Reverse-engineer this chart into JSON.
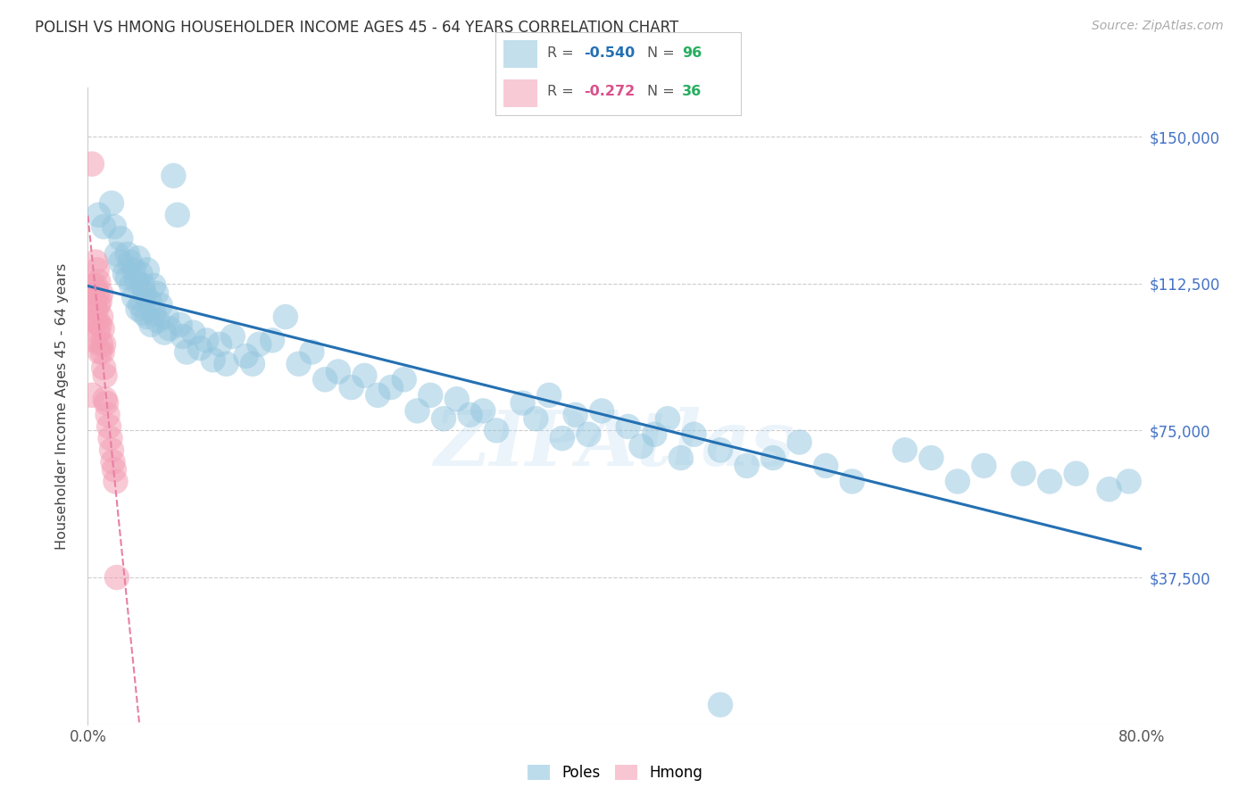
{
  "title": "POLISH VS HMONG HOUSEHOLDER INCOME AGES 45 - 64 YEARS CORRELATION CHART",
  "source": "Source: ZipAtlas.com",
  "ylabel": "Householder Income Ages 45 - 64 years",
  "xlim": [
    0.0,
    0.8
  ],
  "ylim": [
    0,
    162500
  ],
  "ytick_vals": [
    0,
    37500,
    75000,
    112500,
    150000
  ],
  "ytick_labels": [
    "",
    "$37,500",
    "$75,000",
    "$112,500",
    "$150,000"
  ],
  "xtick_positions": [
    0.0,
    0.1,
    0.2,
    0.3,
    0.4,
    0.5,
    0.6,
    0.7,
    0.8
  ],
  "poles_color": "#92c5de",
  "hmong_color": "#f4a0b5",
  "poles_line_color": "#2470b3",
  "hmong_line_color": "#e87fa5",
  "poles_R": -0.54,
  "poles_N": 96,
  "hmong_R": -0.272,
  "hmong_N": 36,
  "poles_x": [
    0.008,
    0.012,
    0.018,
    0.02,
    0.022,
    0.025,
    0.025,
    0.028,
    0.03,
    0.03,
    0.032,
    0.033,
    0.035,
    0.035,
    0.037,
    0.038,
    0.038,
    0.04,
    0.04,
    0.042,
    0.042,
    0.043,
    0.045,
    0.045,
    0.047,
    0.048,
    0.05,
    0.05,
    0.052,
    0.053,
    0.055,
    0.058,
    0.06,
    0.062,
    0.065,
    0.068,
    0.07,
    0.072,
    0.075,
    0.08,
    0.085,
    0.09,
    0.095,
    0.1,
    0.105,
    0.11,
    0.12,
    0.125,
    0.13,
    0.14,
    0.15,
    0.16,
    0.17,
    0.18,
    0.19,
    0.2,
    0.21,
    0.22,
    0.23,
    0.24,
    0.25,
    0.26,
    0.27,
    0.28,
    0.29,
    0.3,
    0.31,
    0.33,
    0.34,
    0.35,
    0.36,
    0.37,
    0.38,
    0.39,
    0.41,
    0.42,
    0.43,
    0.44,
    0.45,
    0.46,
    0.48,
    0.5,
    0.52,
    0.54,
    0.56,
    0.58,
    0.62,
    0.64,
    0.66,
    0.68,
    0.71,
    0.73,
    0.75,
    0.775,
    0.79,
    0.48
  ],
  "poles_y": [
    130000,
    127000,
    133000,
    127000,
    120000,
    118000,
    124000,
    115000,
    120000,
    114000,
    118000,
    112000,
    116000,
    109000,
    113000,
    119000,
    106000,
    115000,
    107000,
    112000,
    105000,
    110000,
    116000,
    104000,
    108000,
    102000,
    112000,
    105000,
    110000,
    103000,
    107000,
    100000,
    104000,
    101000,
    140000,
    130000,
    102000,
    99000,
    95000,
    100000,
    96000,
    98000,
    93000,
    97000,
    92000,
    99000,
    94000,
    92000,
    97000,
    98000,
    104000,
    92000,
    95000,
    88000,
    90000,
    86000,
    89000,
    84000,
    86000,
    88000,
    80000,
    84000,
    78000,
    83000,
    79000,
    80000,
    75000,
    82000,
    78000,
    84000,
    73000,
    79000,
    74000,
    80000,
    76000,
    71000,
    74000,
    78000,
    68000,
    74000,
    70000,
    66000,
    68000,
    72000,
    66000,
    62000,
    70000,
    68000,
    62000,
    66000,
    64000,
    62000,
    64000,
    60000,
    62000,
    5000
  ],
  "hmong_x": [
    0.003,
    0.004,
    0.005,
    0.005,
    0.005,
    0.006,
    0.006,
    0.006,
    0.007,
    0.007,
    0.007,
    0.008,
    0.008,
    0.008,
    0.009,
    0.009,
    0.009,
    0.01,
    0.01,
    0.01,
    0.011,
    0.011,
    0.012,
    0.012,
    0.013,
    0.013,
    0.014,
    0.015,
    0.016,
    0.017,
    0.018,
    0.019,
    0.02,
    0.021,
    0.022,
    0.003
  ],
  "hmong_y": [
    143000,
    112000,
    108000,
    103000,
    98000,
    118000,
    112000,
    106000,
    116000,
    110000,
    103000,
    113000,
    107000,
    100000,
    108000,
    102000,
    95000,
    110000,
    104000,
    97000,
    101000,
    95000,
    97000,
    91000,
    89000,
    83000,
    82000,
    79000,
    76000,
    73000,
    70000,
    67000,
    65000,
    62000,
    37500,
    84000
  ]
}
